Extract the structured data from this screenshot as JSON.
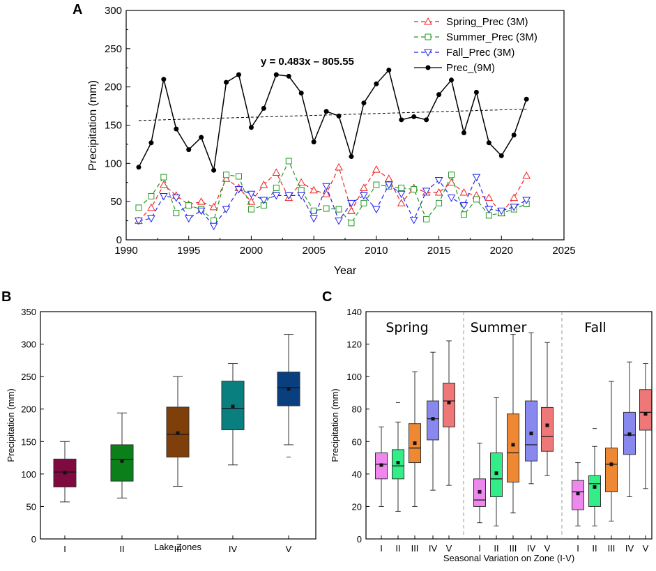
{
  "colors": {
    "spring": "#ee2222",
    "summer": "#229922",
    "fall": "#2222ee",
    "prec9m": "#000000",
    "zoneB": [
      "#7f0a3f",
      "#0a7f1a",
      "#7f3f0a",
      "#0a7f7f",
      "#0a3f7f"
    ],
    "zoneC": [
      "#ee88ee",
      "#33ee88",
      "#ee8833",
      "#8888ee",
      "#ee7777"
    ]
  },
  "chart_data": [
    {
      "panel": "A",
      "type": "line",
      "xlabel": "Year",
      "ylabel": "Precipitation (mm)",
      "xlim": [
        1990,
        2025
      ],
      "ylim": [
        0,
        300
      ],
      "xticks": [
        "1990",
        "1995",
        "2000",
        "2005",
        "2010",
        "2015",
        "2020",
        "2025"
      ],
      "yticks": [
        "0",
        "50",
        "100",
        "150",
        "200",
        "250",
        "300"
      ],
      "equation": "y = 0.483x – 805.55",
      "x": [
        1991,
        1992,
        1993,
        1994,
        1995,
        1996,
        1997,
        1998,
        1999,
        2000,
        2001,
        2002,
        2003,
        2004,
        2005,
        2006,
        2007,
        2008,
        2009,
        2010,
        2011,
        2012,
        2013,
        2014,
        2015,
        2016,
        2017,
        2018,
        2019,
        2020,
        2021,
        2022
      ],
      "series": [
        {
          "name": "Spring_Prec (3M)",
          "values": [
            25,
            42,
            72,
            58,
            46,
            50,
            43,
            80,
            68,
            50,
            72,
            88,
            55,
            75,
            65,
            60,
            95,
            38,
            68,
            92,
            80,
            48,
            68,
            62,
            62,
            75,
            62,
            58,
            55,
            35,
            55,
            84
          ]
        },
        {
          "name": "Summer_Prec (3M)",
          "values": [
            42,
            57,
            82,
            35,
            45,
            40,
            25,
            85,
            83,
            40,
            45,
            68,
            103,
            65,
            38,
            41,
            40,
            22,
            48,
            72,
            70,
            68,
            66,
            27,
            48,
            85,
            33,
            53,
            32,
            35,
            40,
            47
          ]
        },
        {
          "name": "Fall_Prec (3M)",
          "values": [
            25,
            28,
            57,
            55,
            28,
            38,
            18,
            40,
            66,
            60,
            52,
            58,
            58,
            58,
            28,
            70,
            25,
            48,
            58,
            40,
            72,
            60,
            26,
            64,
            78,
            55,
            45,
            82,
            40,
            38,
            43,
            52
          ]
        },
        {
          "name": "Prec_(9M)",
          "values": [
            95,
            127,
            210,
            145,
            118,
            134,
            91,
            206,
            216,
            147,
            172,
            216,
            214,
            192,
            128,
            168,
            162,
            109,
            179,
            204,
            222,
            157,
            161,
            157,
            190,
            209,
            140,
            193,
            127,
            110,
            137,
            184
          ]
        }
      ],
      "trend": {
        "from": [
          1991,
          156
        ],
        "to": [
          2022,
          171
        ]
      }
    },
    {
      "panel": "B",
      "type": "box",
      "xlabel": "Lake Zones",
      "ylabel": "Precipitation (mm)",
      "ylim": [
        0,
        350
      ],
      "yticks": [
        "0",
        "50",
        "100",
        "150",
        "200",
        "250",
        "300",
        "350"
      ],
      "categories": [
        "I",
        "II",
        "III",
        "IV",
        "V"
      ],
      "boxes": [
        {
          "min": 57,
          "q1": 80,
          "median": 103,
          "q3": 123,
          "max": 150,
          "mean": 102
        },
        {
          "min": 63,
          "q1": 89,
          "median": 122,
          "q3": 145,
          "max": 194,
          "mean": 120
        },
        {
          "min": 81,
          "q1": 126,
          "median": 161,
          "q3": 203,
          "max": 250,
          "mean": 163
        },
        {
          "min": 114,
          "q1": 168,
          "median": 201,
          "q3": 243,
          "max": 270,
          "mean": 204
        },
        {
          "min": 145,
          "q1": 205,
          "median": 233,
          "q3": 257,
          "max": 315,
          "mean": 231,
          "outliers": [
            126
          ]
        }
      ]
    },
    {
      "panel": "C",
      "type": "box",
      "xlabel": "Seasonal Variation on Zone  (I-V)",
      "ylabel": "Precipitation (mm)",
      "ylim": [
        0,
        140
      ],
      "yticks": [
        "0",
        "20",
        "40",
        "60",
        "80",
        "100",
        "120",
        "140"
      ],
      "groups": [
        {
          "name": "Spring",
          "categories": [
            "I",
            "II",
            "III",
            "IV",
            "V"
          ],
          "boxes": [
            {
              "min": 20,
              "q1": 37,
              "median": 46,
              "q3": 53,
              "max": 69,
              "mean": 45.5
            },
            {
              "min": 17,
              "q1": 37,
              "median": 45,
              "q3": 55,
              "max": 72,
              "mean": 47,
              "outliers": [
                84
              ]
            },
            {
              "min": 20,
              "q1": 47,
              "median": 56,
              "q3": 71,
              "max": 103,
              "mean": 59
            },
            {
              "min": 30,
              "q1": 61,
              "median": 74,
              "q3": 85,
              "max": 115,
              "mean": 74
            },
            {
              "min": 33,
              "q1": 69,
              "median": 85,
              "q3": 96,
              "max": 122,
              "mean": 84
            }
          ]
        },
        {
          "name": "Summer",
          "categories": [
            "I",
            "II",
            "III",
            "IV",
            "V"
          ],
          "boxes": [
            {
              "min": 10,
              "q1": 20,
              "median": 24,
              "q3": 37,
              "max": 59,
              "mean": 29
            },
            {
              "min": 8,
              "q1": 26,
              "median": 37,
              "q3": 53,
              "max": 87,
              "mean": 40.5
            },
            {
              "min": 16,
              "q1": 35,
              "median": 53,
              "q3": 77,
              "max": 126,
              "mean": 58
            },
            {
              "min": 34,
              "q1": 48,
              "median": 58,
              "q3": 85,
              "max": 127,
              "mean": 65
            },
            {
              "min": 39,
              "q1": 54,
              "median": 63,
              "q3": 81,
              "max": 121,
              "mean": 70
            }
          ]
        },
        {
          "name": "Fall",
          "categories": [
            "I",
            "II",
            "III",
            "IV",
            "V"
          ],
          "boxes": [
            {
              "min": 8,
              "q1": 18,
              "median": 29,
              "q3": 36,
              "max": 47,
              "mean": 28
            },
            {
              "min": 8,
              "q1": 20,
              "median": 34,
              "q3": 39,
              "max": 57,
              "mean": 32,
              "outliers": [
                68
              ]
            },
            {
              "min": 11,
              "q1": 29,
              "median": 46,
              "q3": 56,
              "max": 97,
              "mean": 46
            },
            {
              "min": 26,
              "q1": 52,
              "median": 64,
              "q3": 78,
              "max": 109,
              "mean": 64.5
            },
            {
              "min": 31,
              "q1": 67,
              "median": 78,
              "q3": 92,
              "max": 108,
              "mean": 77
            }
          ]
        }
      ]
    }
  ],
  "panels": {
    "a": "A",
    "b": "B",
    "c": "C"
  }
}
